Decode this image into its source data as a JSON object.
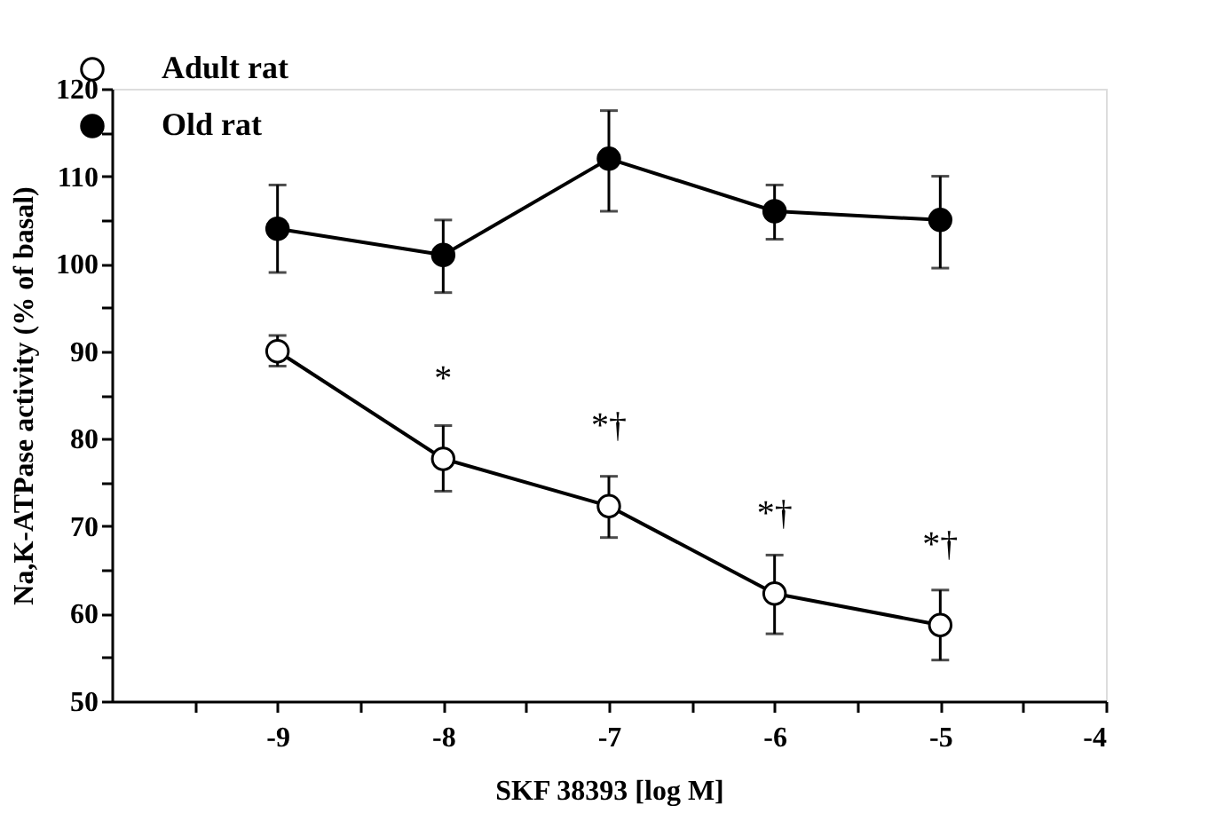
{
  "chart_data": {
    "type": "line",
    "xlabel": "SKF 38393 [log M]",
    "ylabel": "Na,K-ATPase activity (% of basal)",
    "x": [
      -9,
      -8,
      -7,
      -6,
      -5
    ],
    "series": [
      {
        "name": "Adult rat",
        "color": "#ffffff",
        "values": [
          90,
          77.7,
          72.3,
          62.3,
          58.7
        ],
        "errors": [
          [
            88.3,
            91.8
          ],
          [
            74,
            81.5
          ],
          [
            68.7,
            75.7
          ],
          [
            57.7,
            66.7
          ],
          [
            54.7,
            62.7
          ]
        ]
      },
      {
        "name": "Old rat",
        "color": "#000000",
        "values": [
          104,
          101,
          112,
          106,
          105
        ],
        "errors": [
          [
            99,
            109
          ],
          [
            96.7,
            105
          ],
          [
            106,
            117.5
          ],
          [
            102.8,
            109
          ],
          [
            99.5,
            110
          ]
        ]
      }
    ],
    "xlim": [
      -10,
      -4
    ],
    "xticks": [
      {
        "value": -9.5,
        "label": null
      },
      -9,
      {
        "value": -8.5,
        "label": null
      },
      -8,
      {
        "value": -7.5,
        "label": null
      },
      -7,
      {
        "value": -6.5,
        "label": null
      },
      -6,
      {
        "value": -5.5,
        "label": null
      },
      -5,
      {
        "value": -4.5,
        "label": null
      },
      -4
    ],
    "ylim": [
      50,
      120
    ],
    "yticks": [
      50,
      {
        "value": 55,
        "label": null
      },
      60,
      {
        "value": 65,
        "label": null
      },
      70,
      {
        "value": 75,
        "label": null
      },
      80,
      {
        "value": 85,
        "label": null
      },
      90,
      {
        "value": 95,
        "label": null
      },
      100,
      {
        "value": 105,
        "label": null
      },
      110,
      {
        "value": 115,
        "label": null
      },
      120
    ],
    "annotations": [
      {
        "text": "*",
        "x": -8,
        "y": 77.7
      },
      {
        "text": "*†",
        "x": -7,
        "y": 72.3
      },
      {
        "text": "*†",
        "x": -6,
        "y": 62.3
      },
      {
        "text": "*†",
        "x": -5,
        "y": 58.7
      }
    ],
    "marker": "circle",
    "line_style": "solid",
    "legend": "top left",
    "grid": false
  }
}
